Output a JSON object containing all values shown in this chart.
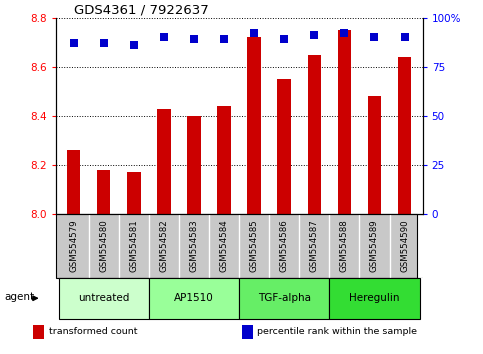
{
  "title": "GDS4361 / 7922637",
  "samples": [
    "GSM554579",
    "GSM554580",
    "GSM554581",
    "GSM554582",
    "GSM554583",
    "GSM554584",
    "GSM554585",
    "GSM554586",
    "GSM554587",
    "GSM554588",
    "GSM554589",
    "GSM554590"
  ],
  "bar_values": [
    8.26,
    8.18,
    8.17,
    8.43,
    8.4,
    8.44,
    8.72,
    8.55,
    8.65,
    8.75,
    8.48,
    8.64
  ],
  "percentile_values": [
    87,
    87,
    86,
    90,
    89,
    89,
    92,
    89,
    91,
    92,
    90,
    90
  ],
  "bar_bottom": 8.0,
  "ylim_left": [
    8.0,
    8.8
  ],
  "ylim_right": [
    0,
    100
  ],
  "yticks_left": [
    8.0,
    8.2,
    8.4,
    8.6,
    8.8
  ],
  "yticks_right": [
    0,
    25,
    50,
    75,
    100
  ],
  "ytick_labels_right": [
    "0",
    "25",
    "50",
    "75",
    "100%"
  ],
  "bar_color": "#cc0000",
  "dot_color": "#0000cc",
  "agents": [
    {
      "label": "untreated",
      "start": 0,
      "end": 3,
      "color": "#ccffcc"
    },
    {
      "label": "AP1510",
      "start": 3,
      "end": 6,
      "color": "#99ff99"
    },
    {
      "label": "TGF-alpha",
      "start": 6,
      "end": 9,
      "color": "#66ee66"
    },
    {
      "label": "Heregulin",
      "start": 9,
      "end": 12,
      "color": "#33dd33"
    }
  ],
  "legend_items": [
    {
      "label": "transformed count",
      "color": "#cc0000"
    },
    {
      "label": "percentile rank within the sample",
      "color": "#0000cc"
    }
  ],
  "agent_label": "agent",
  "bar_width": 0.45,
  "dot_size": 30,
  "dot_marker": "s",
  "tick_area_bg": "#c8c8c8",
  "figsize": [
    4.83,
    3.54
  ],
  "dpi": 100
}
